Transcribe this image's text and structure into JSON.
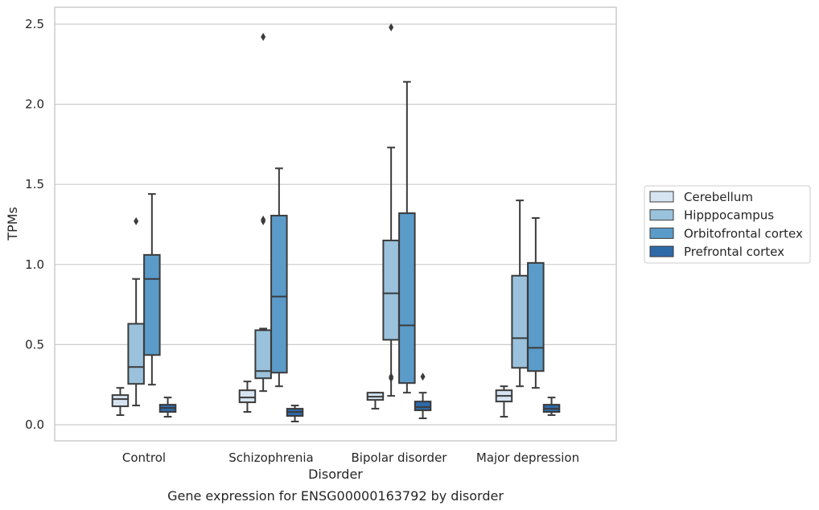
{
  "chart_data": {
    "type": "box",
    "caption": "Gene expression for ENSG00000163792 by disorder",
    "xlabel": "Disorder",
    "ylabel": "TPMs",
    "ylim": [
      -0.1,
      2.6
    ],
    "yticks": [
      0.0,
      0.5,
      1.0,
      1.5,
      2.0,
      2.5
    ],
    "ytick_labels": [
      "0.0",
      "0.5",
      "1.0",
      "1.5",
      "2.0",
      "2.5"
    ],
    "grid": "horizontal",
    "legend_position": "right",
    "categories": [
      "Control",
      "Schizophrenia",
      "Bipolar disorder",
      "Major depression"
    ],
    "series": [
      {
        "name": "Cerebellum",
        "color": "#d6e4f2",
        "boxes": [
          {
            "whislo": 0.06,
            "q1": 0.115,
            "med": 0.16,
            "q3": 0.185,
            "whishi": 0.23,
            "fliers": []
          },
          {
            "whislo": 0.08,
            "q1": 0.14,
            "med": 0.17,
            "q3": 0.215,
            "whishi": 0.27,
            "fliers": []
          },
          {
            "whislo": 0.1,
            "q1": 0.155,
            "med": 0.175,
            "q3": 0.2,
            "whishi": 0.2,
            "fliers": []
          },
          {
            "whislo": 0.05,
            "q1": 0.145,
            "med": 0.18,
            "q3": 0.215,
            "whishi": 0.24,
            "fliers": []
          }
        ]
      },
      {
        "name": "Hipppocampus",
        "color": "#9ac2dc",
        "boxes": [
          {
            "whislo": 0.12,
            "q1": 0.255,
            "med": 0.36,
            "q3": 0.63,
            "whishi": 0.91,
            "fliers": [
              1.27
            ]
          },
          {
            "whislo": 0.21,
            "q1": 0.29,
            "med": 0.335,
            "q3": 0.59,
            "whishi": 0.6,
            "fliers": [
              1.27,
              1.28,
              2.42
            ]
          },
          {
            "whislo": 0.18,
            "q1": 0.53,
            "med": 0.82,
            "q3": 1.15,
            "whishi": 1.73,
            "fliers": [
              0.29,
              0.3,
              2.48
            ]
          },
          {
            "whislo": 0.24,
            "q1": 0.355,
            "med": 0.54,
            "q3": 0.93,
            "whishi": 1.4,
            "fliers": []
          }
        ]
      },
      {
        "name": "Orbitofrontal cortex",
        "color": "#5a9bc9",
        "boxes": [
          {
            "whislo": 0.25,
            "q1": 0.435,
            "med": 0.91,
            "q3": 1.06,
            "whishi": 1.44,
            "fliers": []
          },
          {
            "whislo": 0.24,
            "q1": 0.325,
            "med": 0.8,
            "q3": 1.305,
            "whishi": 1.6,
            "fliers": []
          },
          {
            "whislo": 0.2,
            "q1": 0.26,
            "med": 0.62,
            "q3": 1.32,
            "whishi": 2.14,
            "fliers": []
          },
          {
            "whislo": 0.23,
            "q1": 0.335,
            "med": 0.48,
            "q3": 1.01,
            "whishi": 1.29,
            "fliers": []
          }
        ]
      },
      {
        "name": "Prefrontal cortex",
        "color": "#2e6aa8",
        "boxes": [
          {
            "whislo": 0.05,
            "q1": 0.08,
            "med": 0.105,
            "q3": 0.125,
            "whishi": 0.17,
            "fliers": []
          },
          {
            "whislo": 0.02,
            "q1": 0.055,
            "med": 0.08,
            "q3": 0.1,
            "whishi": 0.12,
            "fliers": []
          },
          {
            "whislo": 0.04,
            "q1": 0.09,
            "med": 0.11,
            "q3": 0.145,
            "whishi": 0.2,
            "fliers": [
              0.3
            ]
          },
          {
            "whislo": 0.06,
            "q1": 0.08,
            "med": 0.1,
            "q3": 0.125,
            "whishi": 0.17,
            "fliers": []
          }
        ]
      }
    ]
  }
}
